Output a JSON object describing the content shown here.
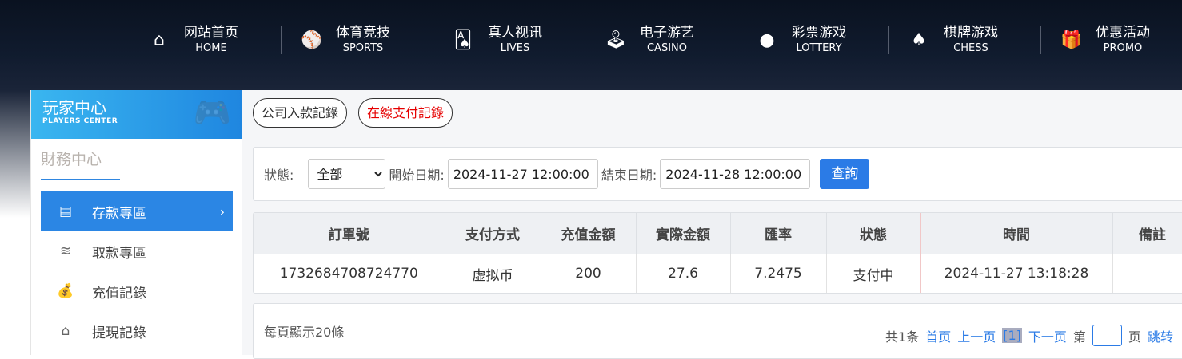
{
  "nav": [
    {
      "cn": "网站首页",
      "en": "HOME",
      "icon": "home-icon",
      "glyph": "⌂"
    },
    {
      "cn": "体育竞技",
      "en": "SPORTS",
      "icon": "ball-icon",
      "glyph": "⚾"
    },
    {
      "cn": "真人视讯",
      "en": "LIVES",
      "icon": "cards-icon",
      "glyph": "🂡"
    },
    {
      "cn": "电子游艺",
      "en": "CASINO",
      "icon": "joystick-icon",
      "glyph": "🕹"
    },
    {
      "cn": "彩票游戏",
      "en": "LOTTERY",
      "icon": "lottery-balls-icon",
      "glyph": "●"
    },
    {
      "cn": "棋牌游戏",
      "en": "CHESS",
      "icon": "spade-icon",
      "glyph": "♠"
    },
    {
      "cn": "优惠活动",
      "en": "PROMO",
      "icon": "gift-icon",
      "glyph": "🎁"
    }
  ],
  "sidebar": {
    "title": "玩家中心",
    "subtitle": "PLAYERS CENTER",
    "section": "財務中心",
    "items": [
      {
        "label": "存款專區",
        "icon": "card-icon",
        "glyph": "▤",
        "active": true
      },
      {
        "label": "取款專區",
        "icon": "cash-hand-icon",
        "glyph": "≋"
      },
      {
        "label": "充值記錄",
        "icon": "money-bag-icon",
        "glyph": "💰"
      },
      {
        "label": "提現記錄",
        "icon": "wallet-icon",
        "glyph": "⌂"
      }
    ]
  },
  "tabs": [
    "公司入款記錄",
    "在線支付記錄"
  ],
  "filter": {
    "status_label": "狀態:",
    "status_value": "全部",
    "start_label": "開始日期:",
    "start_value": "2024-11-27 12:00:00",
    "end_label": "結束日期:",
    "end_value": "2024-11-28 12:00:00",
    "query": "查詢"
  },
  "table": {
    "headers": [
      "訂單號",
      "支付方式",
      "充值金額",
      "實際金額",
      "匯率",
      "狀態",
      "時間",
      "備註"
    ],
    "rows": [
      [
        "1732684708724770",
        "虚拟币",
        "200",
        "27.6",
        "7.2475",
        "支付中",
        "2024-11-27 13:18:28",
        ""
      ]
    ]
  },
  "pager": {
    "per_page": "每頁顯示20條",
    "total": "共1条",
    "first": "首页",
    "prev": "上一页",
    "current": "[1]",
    "next": "下一页",
    "page_prefix": "第",
    "page_suffix": "页",
    "jump": "跳转"
  },
  "colors": {
    "accent": "#2b86e4",
    "active_tab": "#e60000"
  }
}
